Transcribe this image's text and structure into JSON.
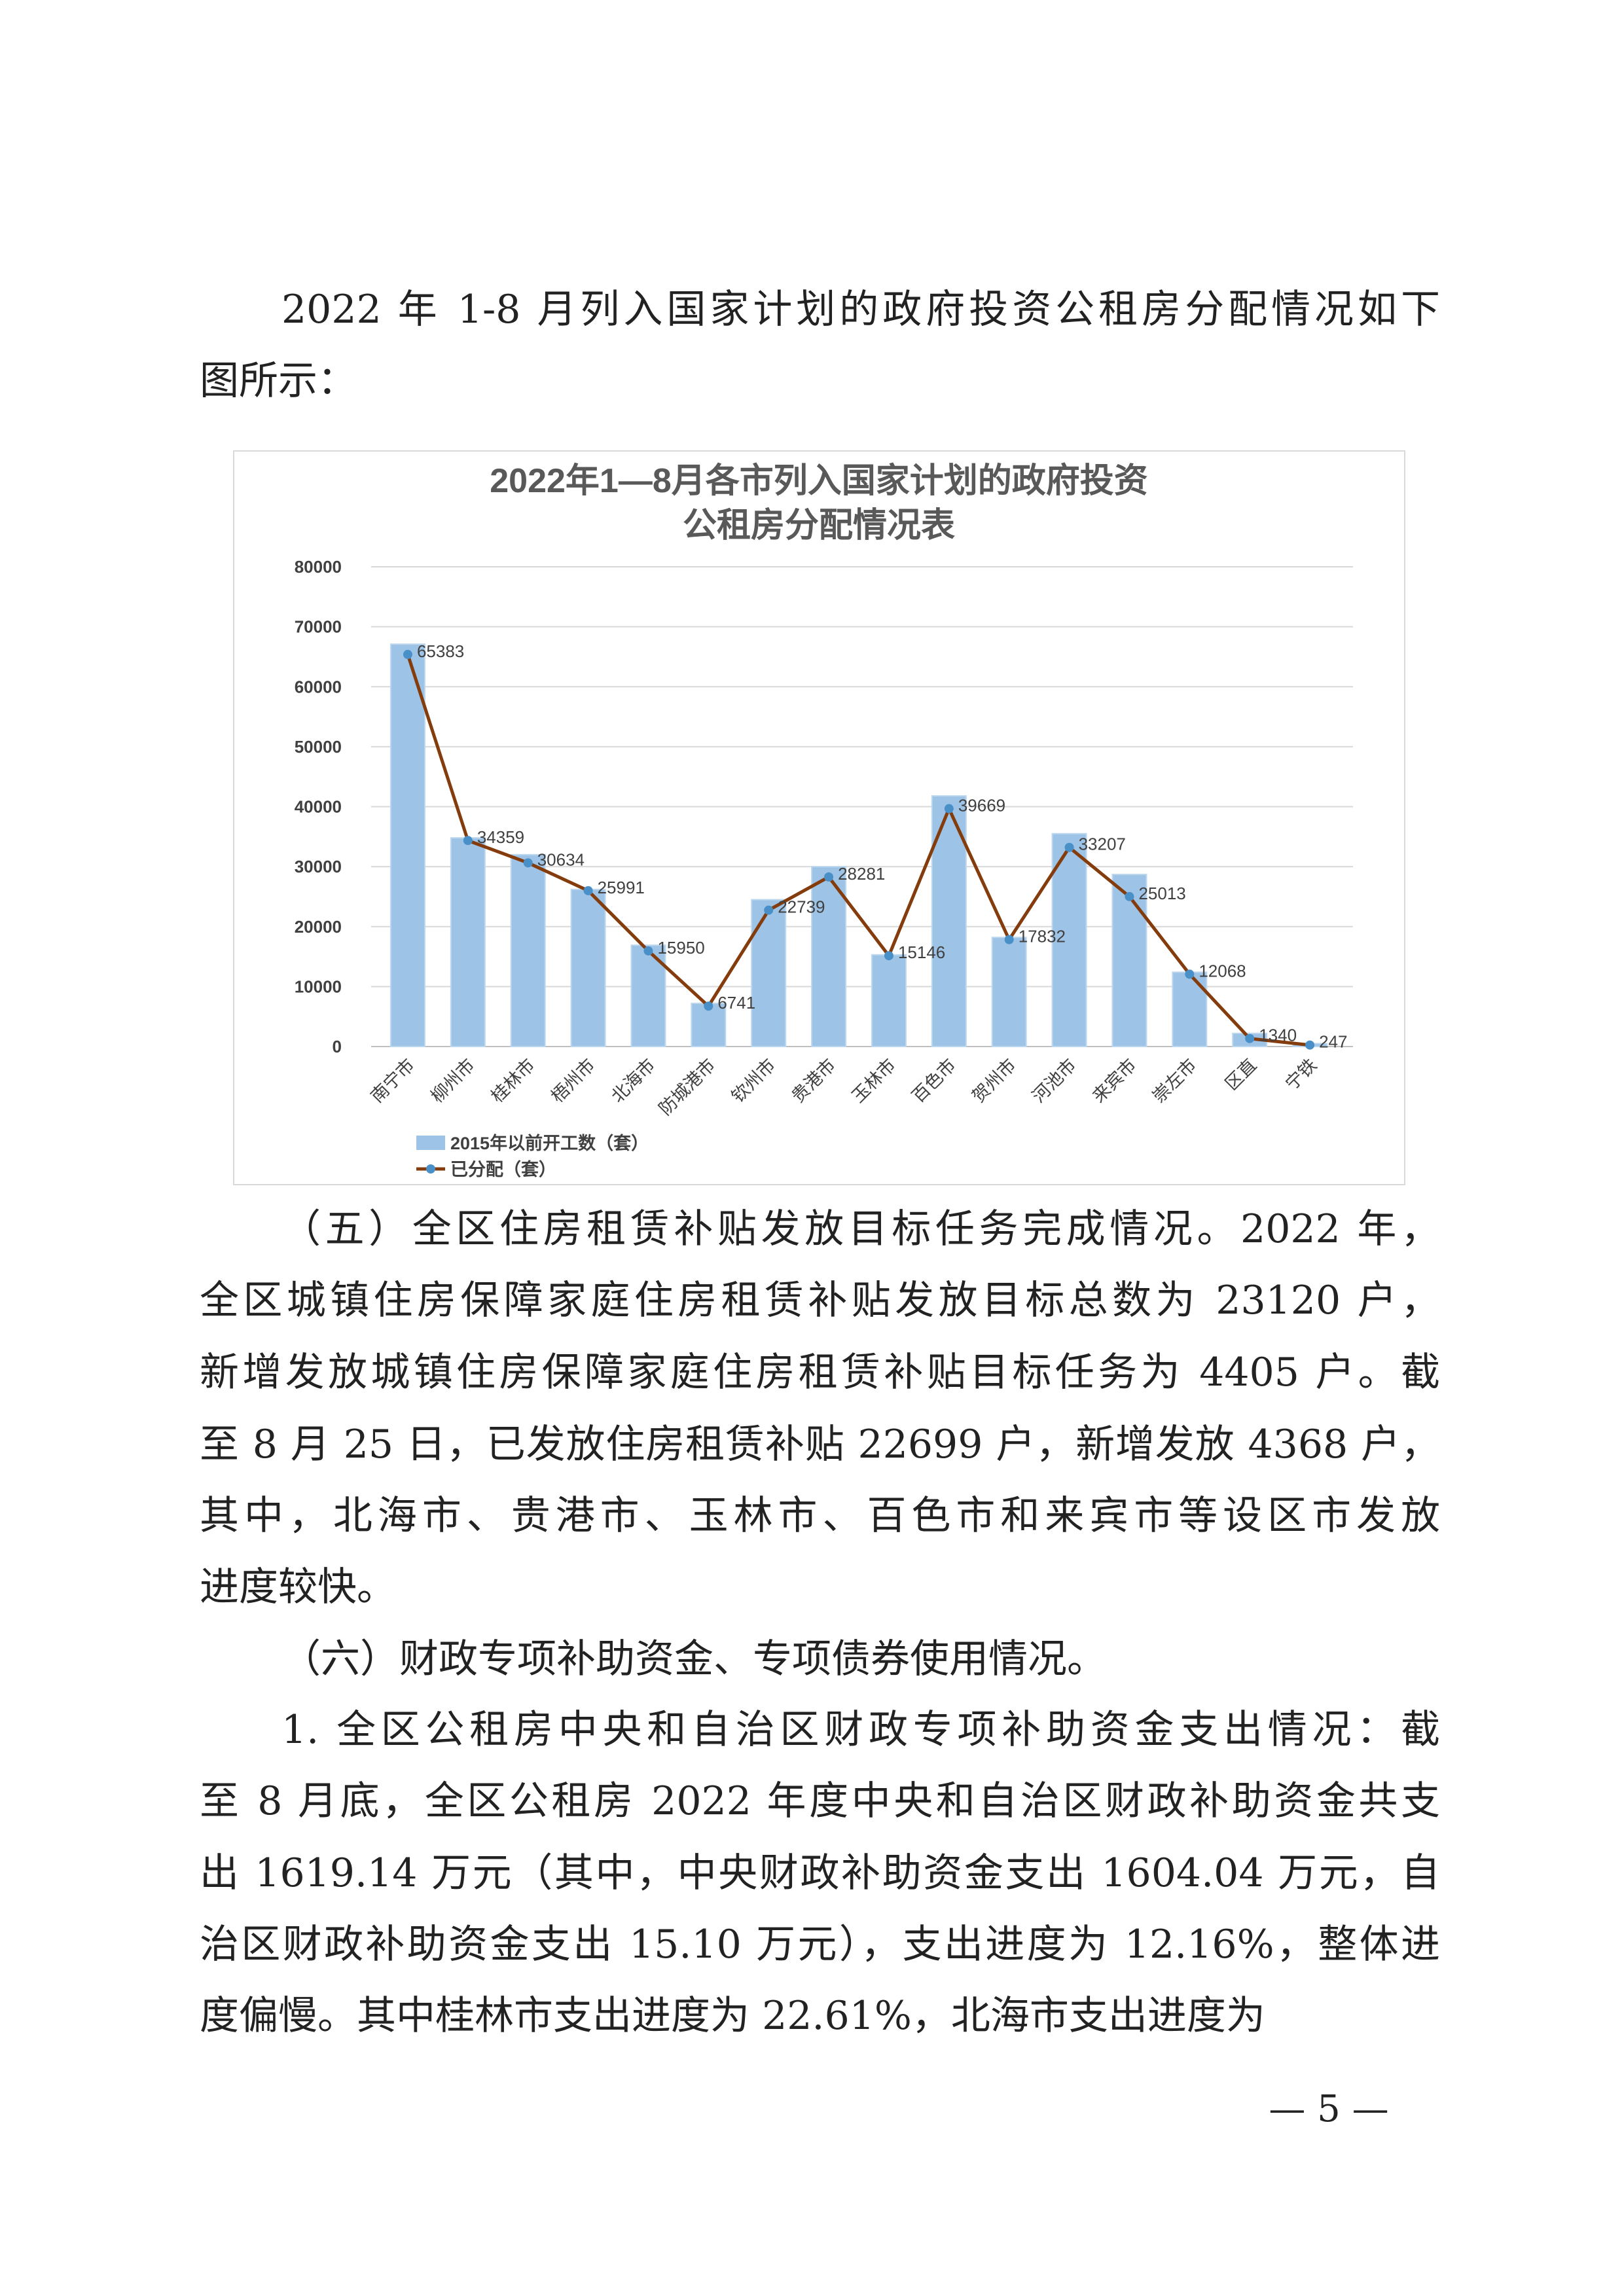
{
  "intro": [
    "2022 年 1-8 月列入国家计划的政府投资公租房分配情况如下",
    "图所示："
  ],
  "para5": [
    "（五）全区住房租赁补贴发放目标任务完成情况。2022 年，",
    "全区城镇住房保障家庭住房租赁补贴发放目标总数为 23120 户，",
    "新增发放城镇住房保障家庭住房租赁补贴目标任务为 4405 户。截",
    "至 8 月 25 日，已发放住房租赁补贴 22699 户，新增发放 4368 户，",
    "其中，北海市、贵港市、玉林市、百色市和来宾市等设区市发放",
    "进度较快。"
  ],
  "para6": [
    "（六）财政专项补助资金、专项债券使用情况。"
  ],
  "para6_1": [
    "1. 全区公租房中央和自治区财政专项补助资金支出情况：截",
    "至 8 月底，全区公租房 2022 年度中央和自治区财政补助资金共支",
    "出 1619.14 万元（其中，中央财政补助资金支出 1604.04 万元，自",
    "治区财政补助资金支出 15.10 万元），支出进度为 12.16%，整体进",
    "度偏慢。其中桂林市支出进度为 22.61%，北海市支出进度为"
  ],
  "page_number": "— 5 —",
  "chart_data": {
    "type": "bar+line",
    "title": [
      "2022年1—8月各市列入国家计划的政府投资",
      "公租房分配情况表"
    ],
    "categories": [
      "南宁市",
      "柳州市",
      "桂林市",
      "梧州市",
      "北海市",
      "防城港市",
      "钦州市",
      "贵港市",
      "玉林市",
      "百色市",
      "贺州市",
      "河池市",
      "来宾市",
      "崇左市",
      "区直",
      "宁铁"
    ],
    "series": [
      {
        "name": "2015年以前开工数（套）",
        "type": "bar",
        "color": "#9dc3e6",
        "values": [
          67100,
          34800,
          32000,
          26200,
          16900,
          7200,
          24500,
          30000,
          15300,
          41800,
          18200,
          35500,
          28700,
          12400,
          2200,
          500
        ]
      },
      {
        "name": "已分配（套）",
        "type": "line",
        "color": "#843c0c",
        "marker_color": "#4a90c8",
        "values": [
          65383,
          34359,
          30634,
          25991,
          15950,
          6741,
          22739,
          28281,
          15146,
          39669,
          17832,
          33207,
          25013,
          12068,
          1340,
          247
        ]
      }
    ],
    "yticks": [
      0,
      10000,
      20000,
      30000,
      40000,
      50000,
      60000,
      70000,
      80000
    ],
    "ylim": [
      0,
      80000
    ],
    "grid": true,
    "legend_position": "bottom"
  }
}
